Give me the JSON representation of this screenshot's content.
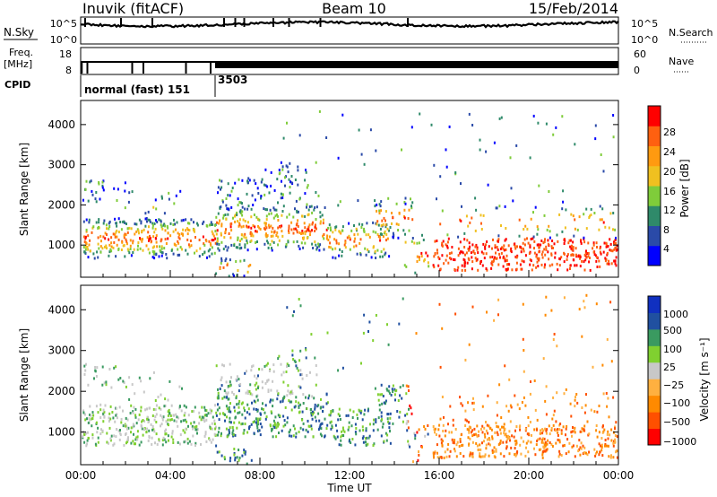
{
  "header": {
    "station": "Inuvik (fitACF)",
    "beam": "Beam 10",
    "date": "15/Feb/2014"
  },
  "chart_data": [
    {
      "type": "line",
      "panel": "noise",
      "left_label": "N.Sky",
      "right_label": "N.Search",
      "left_ticks": [
        "10^5",
        "10^0"
      ],
      "right_ticks": [
        "10^5",
        "10^0"
      ]
    },
    {
      "type": "line",
      "panel": "frequency",
      "left_label": "Freq.",
      "left_unit": "[MHz]",
      "right_label": "Nave",
      "left_ticks": [
        "18",
        "8"
      ],
      "right_ticks": [
        "60",
        "0"
      ]
    },
    {
      "type": "table",
      "panel": "cpid",
      "label": "CPID",
      "segments": [
        {
          "text": "normal (fast) 151",
          "start_hour": 0,
          "end_hour": 6
        },
        {
          "text": "3503",
          "start_hour": 6,
          "end_hour": 24
        }
      ]
    },
    {
      "type": "heatmap",
      "panel": "power",
      "ylabel": "Slant Range [km]",
      "ylim": [
        200,
        4600
      ],
      "yticks": [
        "1000",
        "2000",
        "3000",
        "4000"
      ],
      "colorbar_label": "Power [dB]",
      "colorbar_ticks": [
        "28",
        "24",
        "20",
        "16",
        "12",
        "8",
        "4"
      ],
      "colorscale": [
        "#0000ff",
        "#2a4aa8",
        "#2f8a6a",
        "#7fcc3a",
        "#f0c020",
        "#ff9a10",
        "#ff6010",
        "#ff0000"
      ]
    },
    {
      "type": "heatmap",
      "panel": "velocity",
      "ylabel": "Slant Range [km]",
      "ylim": [
        200,
        4600
      ],
      "yticks": [
        "1000",
        "2000",
        "3000",
        "4000"
      ],
      "colorbar_label": "Velocity [m s⁻¹]",
      "colorbar_ticks": [
        "1000",
        "500",
        "100",
        "25",
        "−25",
        "−100",
        "−500",
        "−1000"
      ],
      "colorscale": [
        "#ff0000",
        "#ff5000",
        "#ff8a00",
        "#ffb040",
        "#c8c8c8",
        "#80d030",
        "#3a9a60",
        "#2050a0",
        "#1030c0"
      ]
    }
  ],
  "xaxis": {
    "label": "Time UT",
    "ticks": [
      "00:00",
      "04:00",
      "08:00",
      "12:00",
      "16:00",
      "20:00",
      "00:00"
    ],
    "range_hours": [
      0,
      24
    ]
  }
}
